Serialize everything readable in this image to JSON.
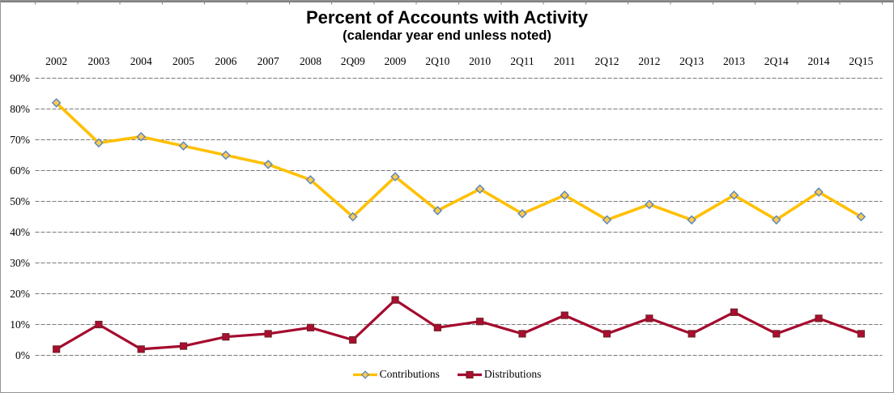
{
  "chart_data": {
    "type": "line",
    "title": "Percent of Accounts with Activity",
    "subtitle": "(calendar year end unless noted)",
    "categories": [
      "2002",
      "2003",
      "2004",
      "2005",
      "2006",
      "2007",
      "2008",
      "2Q09",
      "2009",
      "2Q10",
      "2010",
      "2Q11",
      "2011",
      "2Q12",
      "2012",
      "2Q13",
      "2013",
      "2Q14",
      "2014",
      "2Q15"
    ],
    "series": [
      {
        "name": "Contributions",
        "values": [
          82,
          69,
          71,
          68,
          65,
          62,
          57,
          45,
          58,
          47,
          54,
          46,
          52,
          44,
          49,
          44,
          52,
          44,
          53,
          45
        ],
        "color": "#FFC000",
        "marker": "diamond",
        "marker_fill": "#FFC94E",
        "marker_border": "#5585C2"
      },
      {
        "name": "Distributions",
        "values": [
          2,
          10,
          2,
          3,
          6,
          7,
          9,
          5,
          18,
          9,
          11,
          7,
          13,
          7,
          12,
          7,
          14,
          7,
          12,
          7
        ],
        "color": "#A50B2E",
        "marker": "square",
        "marker_fill": "#AD0C31",
        "marker_border": "#6F2226"
      }
    ],
    "y_axis": {
      "tick_labels": [
        "0%",
        "10%",
        "20%",
        "30%",
        "40%",
        "50%",
        "60%",
        "70%",
        "80%",
        "90%"
      ],
      "min": 0,
      "max": 90,
      "unit": "%"
    },
    "x_axis_position": "top",
    "legend_position": "bottom",
    "grid": "horizontal",
    "gridline_color": "#787878",
    "axis_color": "#808080",
    "text_color": "#000000"
  }
}
